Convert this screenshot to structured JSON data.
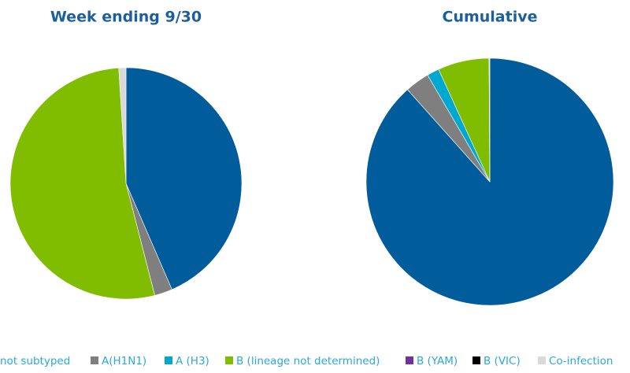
{
  "chart_data": [
    {
      "type": "pie",
      "title": "Week ending 9/30",
      "values": [
        43.5,
        2.5,
        0,
        53,
        0,
        0,
        1
      ]
    },
    {
      "type": "pie",
      "title": "Cumulative",
      "values": [
        88.4,
        3.2,
        1.6,
        6.7,
        0,
        0,
        0.1
      ]
    }
  ],
  "legend": {
    "categories": [
      "not subtyped",
      "A(H1N1)",
      "A (H3)",
      "B (lineage not determined)",
      "B (YAM)",
      "B (VIC)",
      "Co-infection"
    ],
    "colors": [
      "#005c9a",
      "#7f7f7f",
      "#00a8d0",
      "#80bc00",
      "#7030a0",
      "#000000",
      "#d9d9d9"
    ]
  }
}
